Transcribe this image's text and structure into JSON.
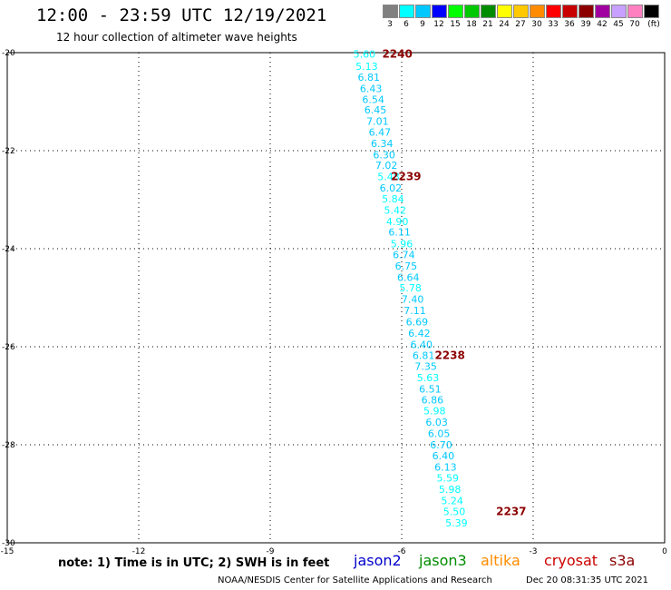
{
  "header": {
    "title": "12:00 - 23:59 UTC 12/19/2021",
    "subtitle": "12 hour collection of altimeter wave heights"
  },
  "legend": {
    "unit": "(ft)",
    "bins": [
      {
        "label": "3",
        "color": "#808080"
      },
      {
        "label": "6",
        "color": "#00ffff"
      },
      {
        "label": "9",
        "color": "#00c8ff"
      },
      {
        "label": "12",
        "color": "#0000ff"
      },
      {
        "label": "15",
        "color": "#00ff00"
      },
      {
        "label": "18",
        "color": "#00c800"
      },
      {
        "label": "21",
        "color": "#008c00"
      },
      {
        "label": "24",
        "color": "#ffff00"
      },
      {
        "label": "27",
        "color": "#ffc800"
      },
      {
        "label": "30",
        "color": "#ff8c00"
      },
      {
        "label": "33",
        "color": "#ff0000"
      },
      {
        "label": "36",
        "color": "#c80000"
      },
      {
        "label": "39",
        "color": "#8c0000"
      },
      {
        "label": "42",
        "color": "#a000a0"
      },
      {
        "label": "45",
        "color": "#c8a0ff"
      },
      {
        "label": "70",
        "color": "#ff80c0"
      },
      {
        "label": "",
        "color": "#000000"
      }
    ]
  },
  "chart_data": {
    "type": "scatter",
    "xlim": [
      -15,
      0
    ],
    "ylim": [
      -30,
      -20
    ],
    "x_ticks": [
      "-15",
      "-12",
      "-9",
      "-6",
      "-3",
      "0"
    ],
    "y_ticks": [
      "-20",
      "-22",
      "-24",
      "-26",
      "-28",
      "-30"
    ],
    "grid": true,
    "points": [
      {
        "x": -6.85,
        "y": -20.03,
        "v": "5.60",
        "color": "#00ffff"
      },
      {
        "x": -6.8,
        "y": -20.28,
        "v": "5.13",
        "color": "#00ffff"
      },
      {
        "x": -6.75,
        "y": -20.5,
        "v": "6.81",
        "color": "#00c8ff"
      },
      {
        "x": -6.7,
        "y": -20.73,
        "v": "6.43",
        "color": "#00c8ff"
      },
      {
        "x": -6.65,
        "y": -20.95,
        "v": "6.54",
        "color": "#00c8ff"
      },
      {
        "x": -6.6,
        "y": -21.17,
        "v": "6.45",
        "color": "#00c8ff"
      },
      {
        "x": -6.55,
        "y": -21.4,
        "v": "7.01",
        "color": "#00c8ff"
      },
      {
        "x": -6.5,
        "y": -21.62,
        "v": "6.47",
        "color": "#00c8ff"
      },
      {
        "x": -6.45,
        "y": -21.85,
        "v": "6.34",
        "color": "#00c8ff"
      },
      {
        "x": -6.4,
        "y": -22.08,
        "v": "6.30",
        "color": "#00c8ff"
      },
      {
        "x": -6.35,
        "y": -22.3,
        "v": "7.02",
        "color": "#00c8ff"
      },
      {
        "x": -6.3,
        "y": -22.53,
        "v": "5.48",
        "color": "#00ffff"
      },
      {
        "x": -6.25,
        "y": -22.76,
        "v": "6.02",
        "color": "#00c8ff"
      },
      {
        "x": -6.2,
        "y": -22.98,
        "v": "5.84",
        "color": "#00ffff"
      },
      {
        "x": -6.15,
        "y": -23.21,
        "v": "5.42",
        "color": "#00ffff"
      },
      {
        "x": -6.1,
        "y": -23.44,
        "v": "4.90",
        "color": "#00ffff"
      },
      {
        "x": -6.05,
        "y": -23.66,
        "v": "6.11",
        "color": "#00c8ff"
      },
      {
        "x": -6.0,
        "y": -23.9,
        "v": "5.96",
        "color": "#00ffff"
      },
      {
        "x": -5.95,
        "y": -24.12,
        "v": "6.74",
        "color": "#00c8ff"
      },
      {
        "x": -5.9,
        "y": -24.35,
        "v": "6.75",
        "color": "#00c8ff"
      },
      {
        "x": -5.85,
        "y": -24.58,
        "v": "6.64",
        "color": "#00c8ff"
      },
      {
        "x": -5.8,
        "y": -24.8,
        "v": "5.78",
        "color": "#00ffff"
      },
      {
        "x": -5.75,
        "y": -25.03,
        "v": "7.40",
        "color": "#00c8ff"
      },
      {
        "x": -5.7,
        "y": -25.26,
        "v": "7.11",
        "color": "#00c8ff"
      },
      {
        "x": -5.65,
        "y": -25.49,
        "v": "6.69",
        "color": "#00c8ff"
      },
      {
        "x": -5.6,
        "y": -25.72,
        "v": "6.42",
        "color": "#00c8ff"
      },
      {
        "x": -5.55,
        "y": -25.95,
        "v": "6.40",
        "color": "#00c8ff"
      },
      {
        "x": -5.5,
        "y": -26.18,
        "v": "6.81",
        "color": "#00c8ff"
      },
      {
        "x": -5.45,
        "y": -26.4,
        "v": "7.35",
        "color": "#00c8ff"
      },
      {
        "x": -5.4,
        "y": -26.63,
        "v": "5.63",
        "color": "#00ffff"
      },
      {
        "x": -5.35,
        "y": -26.86,
        "v": "6.51",
        "color": "#00c8ff"
      },
      {
        "x": -5.3,
        "y": -27.08,
        "v": "6.86",
        "color": "#00c8ff"
      },
      {
        "x": -5.25,
        "y": -27.31,
        "v": "5.98",
        "color": "#00ffff"
      },
      {
        "x": -5.2,
        "y": -27.54,
        "v": "6.03",
        "color": "#00c8ff"
      },
      {
        "x": -5.15,
        "y": -27.77,
        "v": "6.05",
        "color": "#00c8ff"
      },
      {
        "x": -5.1,
        "y": -28.0,
        "v": "6.70",
        "color": "#00c8ff"
      },
      {
        "x": -5.05,
        "y": -28.22,
        "v": "6.40",
        "color": "#00c8ff"
      },
      {
        "x": -5.0,
        "y": -28.45,
        "v": "6.13",
        "color": "#00c8ff"
      },
      {
        "x": -4.95,
        "y": -28.68,
        "v": "5.59",
        "color": "#00ffff"
      },
      {
        "x": -4.9,
        "y": -28.91,
        "v": "5.98",
        "color": "#00ffff"
      },
      {
        "x": -4.85,
        "y": -29.14,
        "v": "5.24",
        "color": "#00ffff"
      },
      {
        "x": -4.8,
        "y": -29.36,
        "v": "5.50",
        "color": "#00ffff"
      },
      {
        "x": -4.75,
        "y": -29.59,
        "v": "5.39",
        "color": "#00ffff"
      }
    ],
    "annotations": [
      {
        "x": -6.1,
        "y": -20.03,
        "label": "2240"
      },
      {
        "x": -5.9,
        "y": -22.53,
        "label": "2239"
      },
      {
        "x": -4.9,
        "y": -26.18,
        "label": "2238"
      },
      {
        "x": -3.5,
        "y": -29.36,
        "label": "2237"
      }
    ]
  },
  "footer": {
    "note": "note:  1) Time is in UTC; 2) SWH is in feet",
    "satellites": [
      {
        "name": "jason2",
        "color": "#0000cc"
      },
      {
        "name": "jason3",
        "color": "#008c00"
      },
      {
        "name": "altika",
        "color": "#ff8c00"
      },
      {
        "name": "cryosat",
        "color": "#cc0000"
      },
      {
        "name": "s3a",
        "color": "#8c0000"
      }
    ],
    "credit": "NOAA/NESDIS Center for Satellite Applications and Research",
    "timestamp": "Dec 20 08:31:35 UTC 2021"
  }
}
